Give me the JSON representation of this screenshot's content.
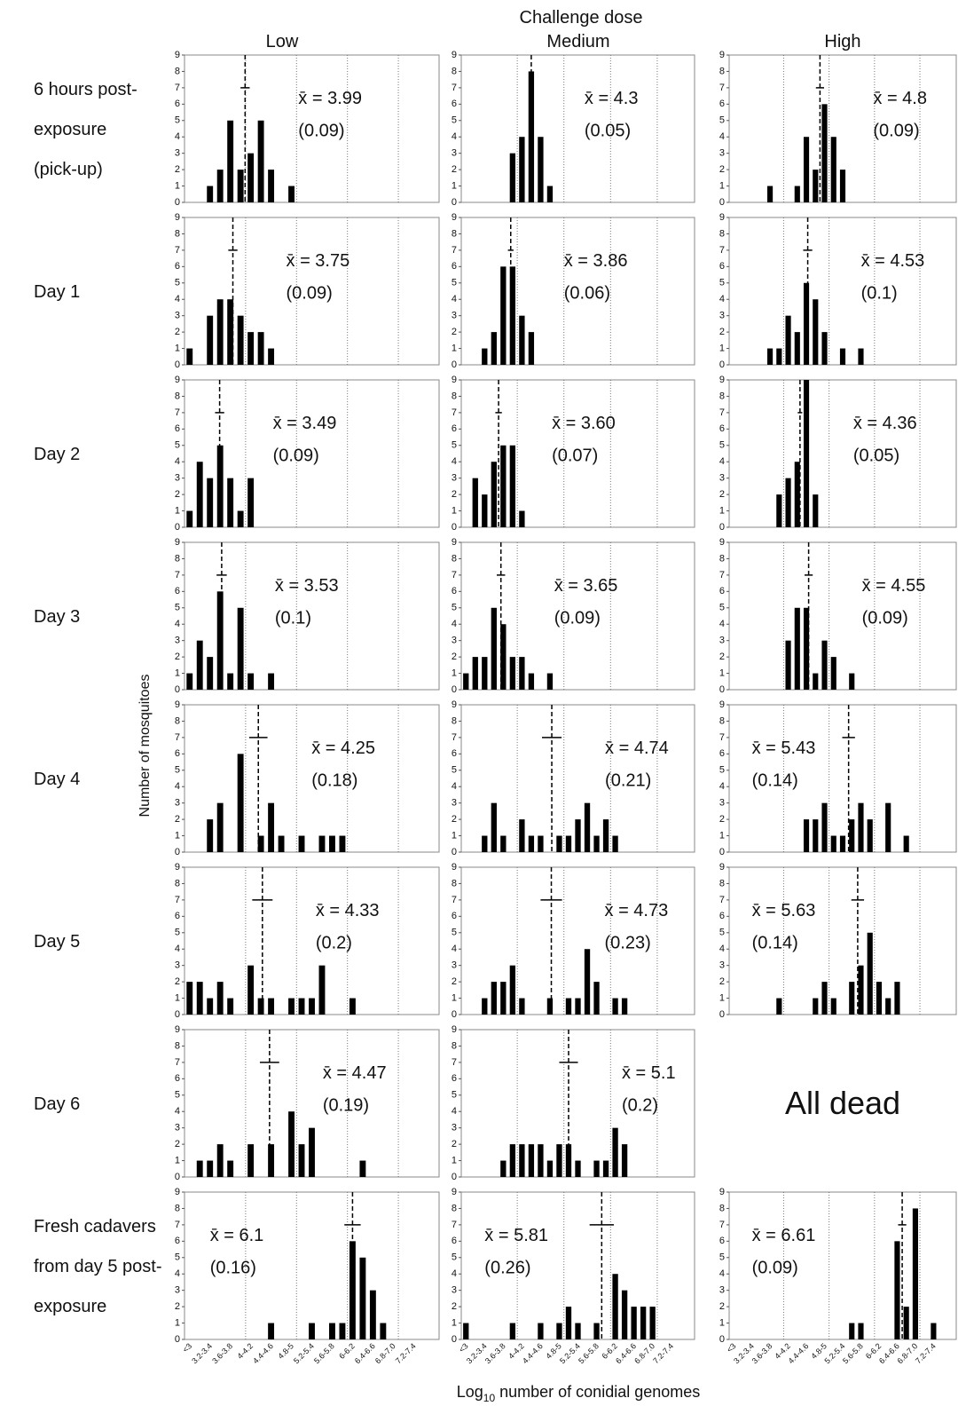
{
  "figure": {
    "title": "Challenge dose",
    "columns": [
      "Low",
      "Medium",
      "High"
    ],
    "rows": [
      [
        "6 hours post-",
        "exposure",
        "(pick-up)"
      ],
      [
        "Day 1"
      ],
      [
        "Day 2"
      ],
      [
        "Day 3"
      ],
      [
        "Day 4"
      ],
      [
        "Day 5"
      ],
      [
        "Day 6"
      ],
      [
        "Fresh cadavers",
        "from day 5 post-",
        "exposure"
      ]
    ],
    "y_label": "Number of mosquitoes",
    "x_label": {
      "text": "Log",
      "sub": "10",
      "rest": " number of conidial genomes"
    },
    "empty_label": "All dead"
  },
  "chart_data": [
    {
      "type": "bar",
      "color": "#000000",
      "ylim": [
        0,
        9
      ],
      "yticks": [
        0,
        1,
        2,
        3,
        4,
        5,
        6,
        7,
        8,
        9
      ],
      "grid": true,
      "values": [
        0,
        0,
        1,
        2,
        5,
        2,
        3,
        5,
        2,
        0,
        1,
        0,
        0,
        0,
        0,
        0,
        0,
        0,
        0,
        0,
        0,
        0,
        0,
        0,
        0
      ],
      "mean": 3.99,
      "mean_label": "x̄ = 3.99",
      "se": 0.09,
      "se_label": "(0.09)"
    },
    {
      "type": "bar",
      "color": "#000000",
      "ylim": [
        0,
        9
      ],
      "yticks": [
        0,
        1,
        2,
        3,
        4,
        5,
        6,
        7,
        8,
        9
      ],
      "grid": true,
      "values": [
        0,
        0,
        0,
        0,
        0,
        3,
        4,
        8,
        4,
        1,
        0,
        0,
        0,
        0,
        0,
        0,
        0,
        0,
        0,
        0,
        0,
        0,
        0,
        0,
        0
      ],
      "mean": 4.3,
      "mean_label": "x̄ = 4.3",
      "se": 0.05,
      "se_label": "(0.05)"
    },
    {
      "type": "bar",
      "color": "#000000",
      "ylim": [
        0,
        9
      ],
      "yticks": [
        0,
        1,
        2,
        3,
        4,
        5,
        6,
        7,
        8,
        9
      ],
      "grid": true,
      "values": [
        0,
        0,
        0,
        0,
        1,
        0,
        0,
        1,
        4,
        2,
        6,
        4,
        2,
        0,
        0,
        0,
        0,
        0,
        0,
        0,
        0,
        0,
        0,
        0,
        0
      ],
      "mean": 4.8,
      "mean_label": "x̄ = 4.8",
      "se": 0.09,
      "se_label": "(0.09)"
    },
    {
      "type": "bar",
      "color": "#000000",
      "ylim": [
        0,
        9
      ],
      "yticks": [
        0,
        1,
        2,
        3,
        4,
        5,
        6,
        7,
        8,
        9
      ],
      "grid": true,
      "values": [
        1,
        0,
        3,
        4,
        4,
        3,
        2,
        2,
        1,
        0,
        0,
        0,
        0,
        0,
        0,
        0,
        0,
        0,
        0,
        0,
        0,
        0,
        0,
        0,
        0
      ],
      "mean": 3.75,
      "mean_label": "x̄ = 3.75",
      "se": 0.09,
      "se_label": "(0.09)"
    },
    {
      "type": "bar",
      "color": "#000000",
      "ylim": [
        0,
        9
      ],
      "yticks": [
        0,
        1,
        2,
        3,
        4,
        5,
        6,
        7,
        8,
        9
      ],
      "grid": true,
      "values": [
        0,
        0,
        1,
        2,
        6,
        6,
        3,
        2,
        0,
        0,
        0,
        0,
        0,
        0,
        0,
        0,
        0,
        0,
        0,
        0,
        0,
        0,
        0,
        0,
        0
      ],
      "mean": 3.86,
      "mean_label": "x̄ = 3.86",
      "se": 0.06,
      "se_label": "(0.06)"
    },
    {
      "type": "bar",
      "color": "#000000",
      "ylim": [
        0,
        9
      ],
      "yticks": [
        0,
        1,
        2,
        3,
        4,
        5,
        6,
        7,
        8,
        9
      ],
      "grid": true,
      "values": [
        0,
        0,
        0,
        0,
        1,
        1,
        3,
        2,
        5,
        4,
        2,
        0,
        1,
        0,
        1,
        0,
        0,
        0,
        0,
        0,
        0,
        0,
        0,
        0,
        0
      ],
      "mean": 4.53,
      "mean_label": "x̄ = 4.53",
      "se": 0.1,
      "se_label": "(0.1)"
    },
    {
      "type": "bar",
      "color": "#000000",
      "ylim": [
        0,
        9
      ],
      "yticks": [
        0,
        1,
        2,
        3,
        4,
        5,
        6,
        7,
        8,
        9
      ],
      "grid": true,
      "values": [
        1,
        4,
        3,
        5,
        3,
        1,
        3,
        0,
        0,
        0,
        0,
        0,
        0,
        0,
        0,
        0,
        0,
        0,
        0,
        0,
        0,
        0,
        0,
        0,
        0
      ],
      "mean": 3.49,
      "mean_label": "x̄ = 3.49",
      "se": 0.09,
      "se_label": "(0.09)"
    },
    {
      "type": "bar",
      "color": "#000000",
      "ylim": [
        0,
        9
      ],
      "yticks": [
        0,
        1,
        2,
        3,
        4,
        5,
        6,
        7,
        8,
        9
      ],
      "grid": true,
      "values": [
        0,
        3,
        2,
        4,
        5,
        5,
        1,
        0,
        0,
        0,
        0,
        0,
        0,
        0,
        0,
        0,
        0,
        0,
        0,
        0,
        0,
        0,
        0,
        0,
        0
      ],
      "mean": 3.6,
      "mean_label": "x̄ = 3.60",
      "se": 0.07,
      "se_label": "(0.07)"
    },
    {
      "type": "bar",
      "color": "#000000",
      "ylim": [
        0,
        9
      ],
      "yticks": [
        0,
        1,
        2,
        3,
        4,
        5,
        6,
        7,
        8,
        9
      ],
      "grid": true,
      "values": [
        0,
        0,
        0,
        0,
        0,
        2,
        3,
        4,
        9,
        2,
        0,
        0,
        0,
        0,
        0,
        0,
        0,
        0,
        0,
        0,
        0,
        0,
        0,
        0,
        0
      ],
      "mean": 4.36,
      "mean_label": "x̄ = 4.36",
      "se": 0.05,
      "se_label": "(0.05)"
    },
    {
      "type": "bar",
      "color": "#000000",
      "ylim": [
        0,
        9
      ],
      "yticks": [
        0,
        1,
        2,
        3,
        4,
        5,
        6,
        7,
        8,
        9
      ],
      "grid": true,
      "values": [
        1,
        3,
        2,
        6,
        1,
        5,
        1,
        0,
        1,
        0,
        0,
        0,
        0,
        0,
        0,
        0,
        0,
        0,
        0,
        0,
        0,
        0,
        0,
        0,
        0
      ],
      "mean": 3.53,
      "mean_label": "x̄ = 3.53",
      "se": 0.1,
      "se_label": "(0.1)"
    },
    {
      "type": "bar",
      "color": "#000000",
      "ylim": [
        0,
        9
      ],
      "yticks": [
        0,
        1,
        2,
        3,
        4,
        5,
        6,
        7,
        8,
        9
      ],
      "grid": true,
      "values": [
        1,
        2,
        2,
        5,
        4,
        2,
        2,
        1,
        0,
        1,
        0,
        0,
        0,
        0,
        0,
        0,
        0,
        0,
        0,
        0,
        0,
        0,
        0,
        0,
        0
      ],
      "mean": 3.65,
      "mean_label": "x̄ = 3.65",
      "se": 0.09,
      "se_label": "(0.09)"
    },
    {
      "type": "bar",
      "color": "#000000",
      "ylim": [
        0,
        9
      ],
      "yticks": [
        0,
        1,
        2,
        3,
        4,
        5,
        6,
        7,
        8,
        9
      ],
      "grid": true,
      "values": [
        0,
        0,
        0,
        0,
        0,
        0,
        3,
        5,
        5,
        1,
        3,
        2,
        0,
        1,
        0,
        0,
        0,
        0,
        0,
        0,
        0,
        0,
        0,
        0,
        0
      ],
      "mean": 4.55,
      "mean_label": "x̄ = 4.55",
      "se": 0.09,
      "se_label": "(0.09)"
    },
    {
      "type": "bar",
      "color": "#000000",
      "ylim": [
        0,
        9
      ],
      "yticks": [
        0,
        1,
        2,
        3,
        4,
        5,
        6,
        7,
        8,
        9
      ],
      "grid": true,
      "values": [
        0,
        0,
        2,
        3,
        0,
        6,
        0,
        1,
        3,
        1,
        0,
        1,
        0,
        1,
        1,
        1,
        0,
        0,
        0,
        0,
        0,
        0,
        0,
        0,
        0
      ],
      "mean": 4.25,
      "mean_label": "x̄ = 4.25",
      "se": 0.18,
      "se_label": "(0.18)"
    },
    {
      "type": "bar",
      "color": "#000000",
      "ylim": [
        0,
        9
      ],
      "yticks": [
        0,
        1,
        2,
        3,
        4,
        5,
        6,
        7,
        8,
        9
      ],
      "grid": true,
      "values": [
        0,
        0,
        1,
        3,
        1,
        0,
        2,
        1,
        1,
        0,
        1,
        1,
        2,
        3,
        1,
        2,
        1,
        0,
        0,
        0,
        0,
        0,
        0,
        0,
        0
      ],
      "mean": 4.74,
      "mean_label": "x̄ = 4.74",
      "se": 0.21,
      "se_label": "(0.21)"
    },
    {
      "type": "bar",
      "color": "#000000",
      "ylim": [
        0,
        9
      ],
      "yticks": [
        0,
        1,
        2,
        3,
        4,
        5,
        6,
        7,
        8,
        9
      ],
      "grid": true,
      "values": [
        0,
        0,
        0,
        0,
        0,
        0,
        0,
        0,
        2,
        2,
        3,
        1,
        1,
        2,
        3,
        2,
        0,
        3,
        0,
        1,
        0,
        0,
        0,
        0,
        0
      ],
      "mean": 5.43,
      "mean_label": "x̄ = 5.43",
      "se": 0.14,
      "se_label": "(0.14)"
    },
    {
      "type": "bar",
      "color": "#000000",
      "ylim": [
        0,
        9
      ],
      "yticks": [
        0,
        1,
        2,
        3,
        4,
        5,
        6,
        7,
        8,
        9
      ],
      "grid": true,
      "values": [
        2,
        2,
        1,
        2,
        1,
        0,
        3,
        1,
        1,
        0,
        1,
        1,
        1,
        3,
        0,
        0,
        1,
        0,
        0,
        0,
        0,
        0,
        0,
        0,
        0
      ],
      "mean": 4.33,
      "mean_label": "x̄ = 4.33",
      "se": 0.2,
      "se_label": "(0.2)"
    },
    {
      "type": "bar",
      "color": "#000000",
      "ylim": [
        0,
        9
      ],
      "yticks": [
        0,
        1,
        2,
        3,
        4,
        5,
        6,
        7,
        8,
        9
      ],
      "grid": true,
      "values": [
        0,
        0,
        1,
        2,
        2,
        3,
        1,
        0,
        0,
        1,
        0,
        1,
        1,
        4,
        2,
        0,
        1,
        1,
        0,
        0,
        0,
        0,
        0,
        0,
        0
      ],
      "mean": 4.73,
      "mean_label": "x̄ = 4.73",
      "se": 0.23,
      "se_label": "(0.23)"
    },
    {
      "type": "bar",
      "color": "#000000",
      "ylim": [
        0,
        9
      ],
      "yticks": [
        0,
        1,
        2,
        3,
        4,
        5,
        6,
        7,
        8,
        9
      ],
      "grid": true,
      "values": [
        0,
        0,
        0,
        0,
        0,
        1,
        0,
        0,
        0,
        1,
        2,
        1,
        0,
        2,
        3,
        5,
        2,
        1,
        2,
        0,
        0,
        0,
        0,
        0,
        0
      ],
      "mean": 5.63,
      "mean_label": "x̄ = 5.63",
      "se": 0.14,
      "se_label": "(0.14)"
    },
    {
      "type": "bar",
      "color": "#000000",
      "ylim": [
        0,
        9
      ],
      "yticks": [
        0,
        1,
        2,
        3,
        4,
        5,
        6,
        7,
        8,
        9
      ],
      "grid": true,
      "values": [
        0,
        1,
        1,
        2,
        1,
        0,
        2,
        0,
        2,
        0,
        4,
        2,
        3,
        0,
        0,
        0,
        0,
        1,
        0,
        0,
        0,
        0,
        0,
        0,
        0
      ],
      "mean": 4.47,
      "mean_label": "x̄ = 4.47",
      "se": 0.19,
      "se_label": "(0.19)"
    },
    {
      "type": "bar",
      "color": "#000000",
      "ylim": [
        0,
        9
      ],
      "yticks": [
        0,
        1,
        2,
        3,
        4,
        5,
        6,
        7,
        8,
        9
      ],
      "grid": true,
      "values": [
        0,
        0,
        0,
        0,
        1,
        2,
        2,
        2,
        2,
        1,
        2,
        2,
        1,
        0,
        1,
        1,
        3,
        2,
        0,
        0,
        0,
        0,
        0,
        0,
        0
      ],
      "mean": 5.1,
      "mean_label": "x̄ = 5.1",
      "se": 0.2,
      "se_label": "(0.2)"
    },
    {
      "type": "bar",
      "color": "#000000",
      "ylim": [
        0,
        9
      ],
      "yticks": [
        0,
        1,
        2,
        3,
        4,
        5,
        6,
        7,
        8,
        9
      ],
      "grid": true,
      "categories": [
        "<3",
        null,
        "3.2-3.4",
        null,
        "3.6-3.8",
        null,
        "4-4.2",
        null,
        "4.4-4.6",
        null,
        "4.8-5",
        null,
        "5.2-5.4",
        null,
        "5.6-5.8",
        null,
        "6-6.2",
        null,
        "6.4-6.6",
        null,
        "6.8-7.0",
        null,
        "7.2-7.4",
        null,
        null
      ],
      "values": [
        0,
        0,
        0,
        0,
        0,
        0,
        0,
        0,
        1,
        0,
        0,
        0,
        1,
        0,
        1,
        1,
        6,
        5,
        3,
        1,
        0,
        0,
        0,
        0,
        0
      ],
      "mean": 6.1,
      "mean_label": "x̄ = 6.1",
      "se": 0.16,
      "se_label": "(0.16)"
    },
    {
      "type": "bar",
      "color": "#000000",
      "ylim": [
        0,
        9
      ],
      "yticks": [
        0,
        1,
        2,
        3,
        4,
        5,
        6,
        7,
        8,
        9
      ],
      "grid": true,
      "categories": [
        "<3",
        null,
        "3.2-3.4",
        null,
        "3.6-3.8",
        null,
        "4-4.2",
        null,
        "4.4-4.6",
        null,
        "4.8-5",
        null,
        "5.2-5.4",
        null,
        "5.6-5.8",
        null,
        "6-6.2",
        null,
        "6.4-6.6",
        null,
        "6.8-7.0",
        null,
        "7.2-7.4",
        null,
        null
      ],
      "values": [
        1,
        0,
        0,
        0,
        0,
        1,
        0,
        0,
        1,
        0,
        1,
        2,
        1,
        0,
        1,
        0,
        4,
        3,
        2,
        2,
        2,
        0,
        0,
        0,
        0
      ],
      "mean": 5.81,
      "mean_label": "x̄ = 5.81",
      "se": 0.26,
      "se_label": "(0.26)"
    },
    {
      "type": "bar",
      "color": "#000000",
      "ylim": [
        0,
        9
      ],
      "yticks": [
        0,
        1,
        2,
        3,
        4,
        5,
        6,
        7,
        8,
        9
      ],
      "grid": true,
      "categories": [
        "<3",
        null,
        "3.2-3.4",
        null,
        "3.6-3.8",
        null,
        "4-4.2",
        null,
        "4.4-4.6",
        null,
        "4.8-5",
        null,
        "5.2-5.4",
        null,
        "5.6-5.8",
        null,
        "6-6.2",
        null,
        "6.4-6.6",
        null,
        "6.8-7.0",
        null,
        "7.2-7.4",
        null,
        null
      ],
      "values": [
        0,
        0,
        0,
        0,
        0,
        0,
        0,
        0,
        0,
        0,
        0,
        0,
        0,
        1,
        1,
        0,
        0,
        0,
        6,
        2,
        8,
        0,
        1,
        0,
        0
      ],
      "mean": 6.61,
      "mean_label": "x̄ = 6.61",
      "se": 0.09,
      "se_label": "(0.09)"
    }
  ]
}
